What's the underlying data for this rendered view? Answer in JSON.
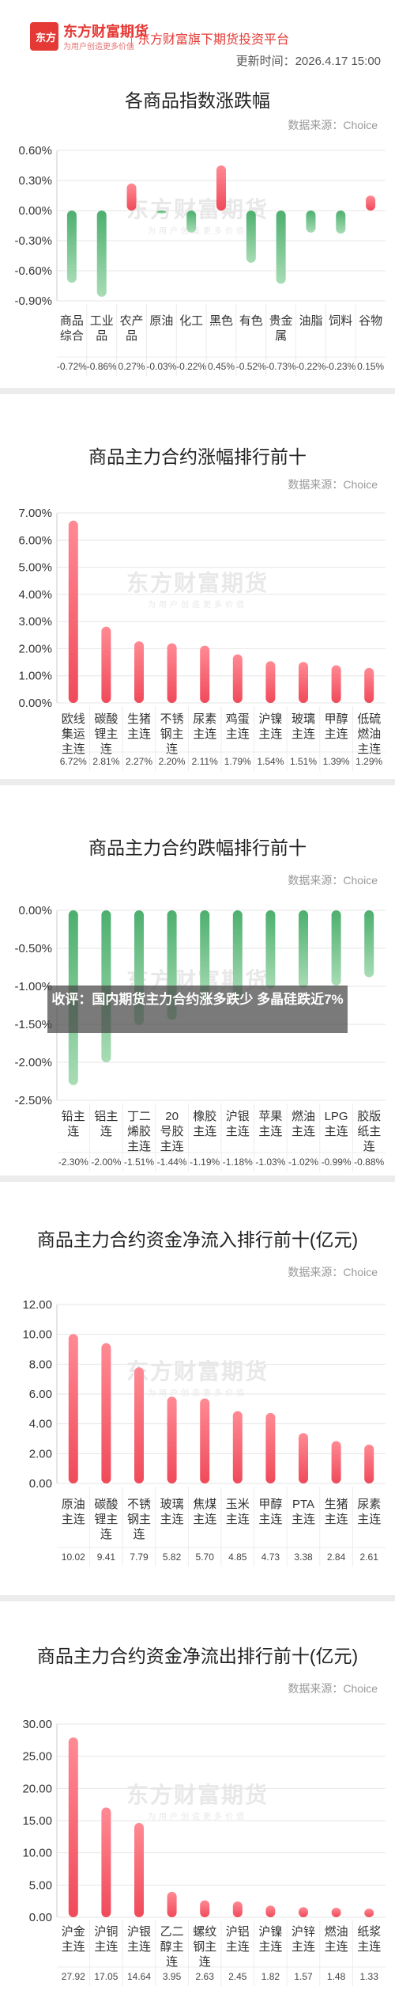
{
  "header": {
    "logo_text": "东方",
    "brand": "东方财富期货",
    "brand_sub": "为用户创造更多价值",
    "platform": "东方财富旗下期货投资平台",
    "update_time": "更新时间：2026.4.17 15:00"
  },
  "source_label": "数据来源：Choice",
  "watermark": {
    "line1": "东方财富期货",
    "line2": "为用户创造更多价值"
  },
  "overlay_text": "收评：国内期货主力合约涨多跌少 多晶硅跌近7%",
  "colors": {
    "up": "#f04a5a",
    "down": "#4caf6e"
  },
  "chart_data": [
    {
      "type": "bar",
      "title": "各商品指数涨跌幅",
      "categories": [
        "商品综合",
        "工业品",
        "农产品",
        "原油",
        "化工",
        "黑色",
        "有色",
        "贵金属",
        "油脂",
        "饲料",
        "谷物"
      ],
      "values": [
        -0.72,
        -0.86,
        0.27,
        -0.03,
        -0.22,
        0.45,
        -0.52,
        -0.73,
        -0.22,
        -0.23,
        0.15
      ],
      "value_labels": [
        "-0.72%",
        "-0.86%",
        "0.27%",
        "-0.03%",
        "-0.22%",
        "0.45%",
        "-0.52%",
        "-0.73%",
        "-0.22%",
        "-0.23%",
        "0.15%"
      ],
      "yticks": [
        "0.60%",
        "0.30%",
        "0.00%",
        "-0.30%",
        "-0.60%",
        "-0.90%"
      ],
      "ylim": [
        -0.9,
        0.6
      ]
    },
    {
      "type": "bar",
      "title": "商品主力合约涨幅排行前十",
      "categories": [
        "欧线集运主连",
        "碳酸锂主连",
        "生猪主连",
        "不锈钢主连",
        "尿素主连",
        "鸡蛋主连",
        "沪镍主连",
        "玻璃主连",
        "甲醇主连",
        "低硫燃油主连"
      ],
      "values": [
        6.72,
        2.81,
        2.27,
        2.2,
        2.11,
        1.79,
        1.54,
        1.51,
        1.39,
        1.29
      ],
      "value_labels": [
        "6.72%",
        "2.81%",
        "2.27%",
        "2.20%",
        "2.11%",
        "1.79%",
        "1.54%",
        "1.51%",
        "1.39%",
        "1.29%"
      ],
      "yticks": [
        "7.00%",
        "6.00%",
        "5.00%",
        "4.00%",
        "3.00%",
        "2.00%",
        "1.00%",
        "0.00%"
      ],
      "ylim": [
        0,
        7
      ]
    },
    {
      "type": "bar",
      "title": "商品主力合约跌幅排行前十",
      "categories": [
        "铅主连",
        "铝主连",
        "丁二烯胶主连",
        "20号胶主连",
        "橡胶主连",
        "沪银主连",
        "苹果主连",
        "燃油主连",
        "LPG主连",
        "胶版纸主连"
      ],
      "values": [
        -2.3,
        -2.0,
        -1.51,
        -1.44,
        -1.19,
        -1.18,
        -1.03,
        -1.02,
        -0.99,
        -0.88
      ],
      "value_labels": [
        "-2.30%",
        "-2.00%",
        "-1.51%",
        "-1.44%",
        "-1.19%",
        "-1.18%",
        "-1.03%",
        "-1.02%",
        "-0.99%",
        "-0.88%"
      ],
      "yticks": [
        "0.00%",
        "-0.50%",
        "-1.00%",
        "-1.50%",
        "-2.00%",
        "-2.50%"
      ],
      "ylim": [
        -2.5,
        0
      ]
    },
    {
      "type": "bar",
      "title": "商品主力合约资金净流入排行前十(亿元)",
      "categories": [
        "原油主连",
        "碳酸锂主连",
        "不锈钢主连",
        "玻璃主连",
        "焦煤主连",
        "玉米主连",
        "甲醇主连",
        "PTA主连",
        "生猪主连",
        "尿素主连"
      ],
      "values": [
        10.02,
        9.41,
        7.79,
        5.82,
        5.7,
        4.85,
        4.73,
        3.38,
        2.84,
        2.61
      ],
      "value_labels": [
        "10.02",
        "9.41",
        "7.79",
        "5.82",
        "5.70",
        "4.85",
        "4.73",
        "3.38",
        "2.84",
        "2.61"
      ],
      "yticks": [
        "12.00",
        "10.00",
        "8.00",
        "6.00",
        "4.00",
        "2.00",
        "0.00"
      ],
      "ylim": [
        0,
        12
      ]
    },
    {
      "type": "bar",
      "title": "商品主力合约资金净流出排行前十(亿元)",
      "categories": [
        "沪金主连",
        "沪铜主连",
        "沪银主连",
        "乙二醇主连",
        "螺纹钢主连",
        "沪铝主连",
        "沪镍主连",
        "沪锌主连",
        "燃油主连",
        "纸浆主连"
      ],
      "values": [
        27.92,
        17.05,
        14.64,
        3.95,
        2.63,
        2.45,
        1.82,
        1.57,
        1.48,
        1.33
      ],
      "value_labels": [
        "27.92",
        "17.05",
        "14.64",
        "3.95",
        "2.63",
        "2.45",
        "1.82",
        "1.57",
        "1.48",
        "1.33"
      ],
      "yticks": [
        "30.00",
        "25.00",
        "20.00",
        "15.00",
        "10.00",
        "5.00",
        "0.00"
      ],
      "ylim": [
        0,
        30
      ]
    }
  ]
}
